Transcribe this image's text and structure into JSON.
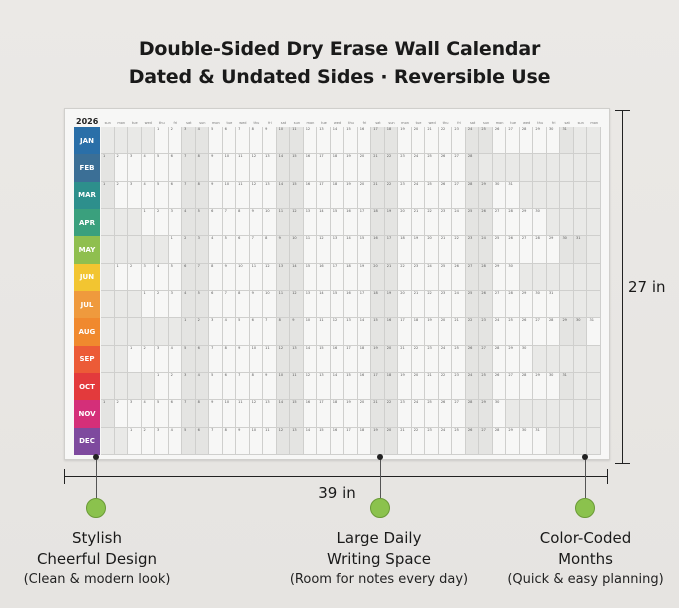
{
  "title_line1": "Double-Sided Dry Erase Wall Calendar",
  "title_line2": "Dated & Undated Sides · Reversible Use",
  "calendar": {
    "year": "2026",
    "weekdays": [
      "sun",
      "mon",
      "tue",
      "wed",
      "thu",
      "fri",
      "sat",
      "sun",
      "mon",
      "tue",
      "wed",
      "thu",
      "fri",
      "sat",
      "sun",
      "mon",
      "tue",
      "wed",
      "thu",
      "fri",
      "sat",
      "sun",
      "mon",
      "tue",
      "wed",
      "thu",
      "fri",
      "sat",
      "sun",
      "mon",
      "tue",
      "wed",
      "thu",
      "fri",
      "sat",
      "sun",
      "mon"
    ],
    "months": [
      {
        "label": "JAN",
        "color": "#2a6fa8",
        "start": 4,
        "days": 31
      },
      {
        "label": "FEB",
        "color": "#3b6f96",
        "start": 0,
        "days": 28
      },
      {
        "label": "MAR",
        "color": "#2d8f8c",
        "start": 0,
        "days": 31
      },
      {
        "label": "APR",
        "color": "#3aa07d",
        "start": 3,
        "days": 30
      },
      {
        "label": "MAY",
        "color": "#8fbf4f",
        "start": 5,
        "days": 31
      },
      {
        "label": "JUN",
        "color": "#f2c531",
        "start": 1,
        "days": 30
      },
      {
        "label": "JUL",
        "color": "#ef9a3d",
        "start": 3,
        "days": 31
      },
      {
        "label": "AUG",
        "color": "#f0892e",
        "start": 6,
        "days": 31
      },
      {
        "label": "SEP",
        "color": "#ec5b37",
        "start": 2,
        "days": 30
      },
      {
        "label": "OCT",
        "color": "#e33a3c",
        "start": 4,
        "days": 31
      },
      {
        "label": "NOV",
        "color": "#d42f79",
        "start": 0,
        "days": 30
      },
      {
        "label": "DEC",
        "color": "#7e4a9e",
        "start": 2,
        "days": 31
      }
    ]
  },
  "dimensions": {
    "height_label": "27 in",
    "width_label": "39 in"
  },
  "features": [
    {
      "title1": "Stylish",
      "title2": "Cheerful Design",
      "sub": "(Clean & modern look)"
    },
    {
      "title1": "Large Daily",
      "title2": "Writing Space",
      "sub": "(Room for notes every day)"
    },
    {
      "title1": "Color-Coded",
      "title2": "Months",
      "sub": "(Quick & easy planning)"
    }
  ],
  "colors": {
    "accent_green": "#8bc24d",
    "background": "#e8e6e3"
  }
}
